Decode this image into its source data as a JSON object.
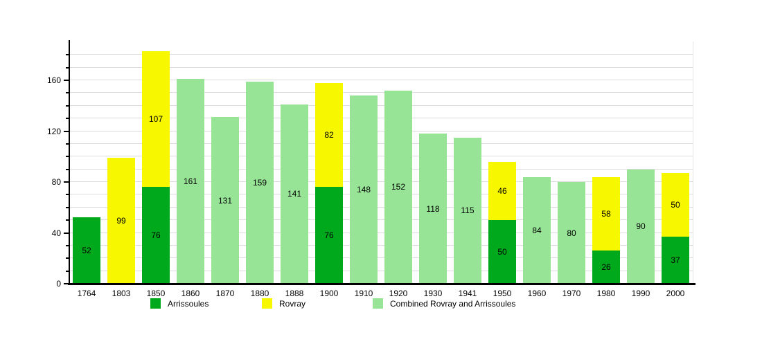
{
  "chart_data": {
    "type": "bar",
    "stacked": true,
    "title": "",
    "xlabel": "",
    "ylabel": "",
    "categories": [
      "1764",
      "1803",
      "1850",
      "1860",
      "1870",
      "1880",
      "1888",
      "1900",
      "1910",
      "1920",
      "1930",
      "1941",
      "1950",
      "1960",
      "1970",
      "1980",
      "1990",
      "2000"
    ],
    "series": [
      {
        "name": "Arrissoules",
        "color": "#00a81c",
        "values": [
          52,
          null,
          76,
          null,
          null,
          null,
          null,
          76,
          null,
          null,
          null,
          null,
          50,
          null,
          null,
          26,
          null,
          37
        ]
      },
      {
        "name": "Rovray",
        "color": "#f7f700",
        "values": [
          null,
          99,
          107,
          null,
          null,
          null,
          null,
          82,
          null,
          null,
          null,
          null,
          46,
          null,
          null,
          58,
          null,
          50
        ]
      },
      {
        "name": "Combined Rovray and Arrissoules",
        "color": "#97e497",
        "values": [
          null,
          null,
          null,
          161,
          131,
          159,
          141,
          null,
          148,
          152,
          118,
          115,
          null,
          84,
          80,
          null,
          90,
          null
        ]
      }
    ],
    "yaxis": {
      "ticks": [
        0,
        40,
        80,
        120,
        160
      ],
      "minor_grid_step": 10,
      "min": 0,
      "max": 190
    },
    "grid": true,
    "legend_position": "bottom",
    "bar_value_labels_shown": true
  },
  "colors": {
    "background": "#ffffff",
    "grid": "#dcdcdc",
    "axis": "#000000",
    "text": "#000000"
  },
  "legend_x_positions": [
    217,
    378,
    538
  ]
}
